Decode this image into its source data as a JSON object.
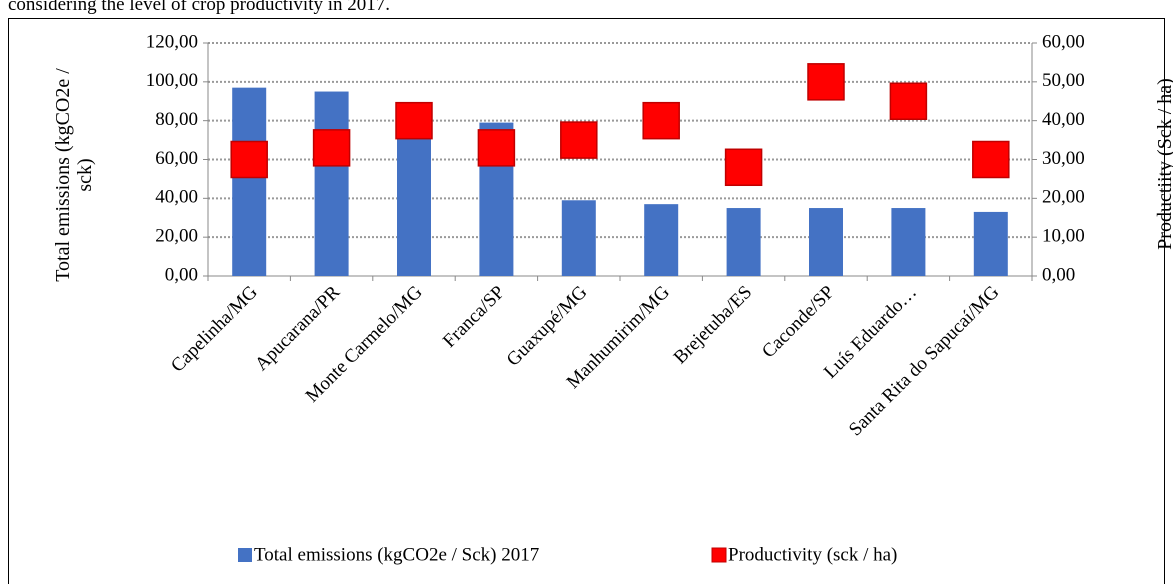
{
  "caption": "considering the level of crop productivity in 2017.",
  "chart_data": {
    "type": "bar",
    "y_label": "Total emissions (kgCO2e / sck)",
    "y2_label": "Productiity (Sck / ha)",
    "categories": [
      "Capelinha/MG",
      "Apucarana/PR",
      "Monte Carmelo/MG",
      "Franca/SP",
      "Guaxupé/MG",
      "Manhumirim/MG",
      "Brejetuba/ES",
      "Caconde/SP",
      "Luís Eduardo…",
      "Santa Rita do Sapucaí/MG"
    ],
    "series": [
      {
        "name": "Total emissions (kgCO2e / Sck) 2017",
        "type": "bar",
        "color": "#4472c4",
        "values": [
          97,
          95,
          88,
          79,
          39,
          37,
          35,
          35,
          35,
          33
        ]
      },
      {
        "name": "Productivity (sck / ha)",
        "type": "marker",
        "color": "#ff0000",
        "axis": "y2",
        "values": [
          30,
          33,
          40,
          33,
          35,
          40,
          28,
          50,
          45,
          30
        ]
      }
    ],
    "ylim": [
      0,
      120
    ],
    "yticks": [
      {
        "value": 0,
        "label": "0,00"
      },
      {
        "value": 20,
        "label": "20,00"
      },
      {
        "value": 40,
        "label": "40,00"
      },
      {
        "value": 60,
        "label": "60,00"
      },
      {
        "value": 80,
        "label": "80,00"
      },
      {
        "value": 100,
        "label": "100,00"
      },
      {
        "value": 120,
        "label": "120,00"
      }
    ],
    "y2lim": [
      0,
      60
    ],
    "y2ticks": [
      {
        "value": 0,
        "label": "0,00"
      },
      {
        "value": 10,
        "label": "10,00"
      },
      {
        "value": 20,
        "label": "20,00"
      },
      {
        "value": 30,
        "label": "30,00"
      },
      {
        "value": 40,
        "label": "40,00"
      },
      {
        "value": 50,
        "label": "50,00"
      },
      {
        "value": 60,
        "label": "60,00"
      }
    ],
    "grid": true,
    "legend": "bottom"
  }
}
